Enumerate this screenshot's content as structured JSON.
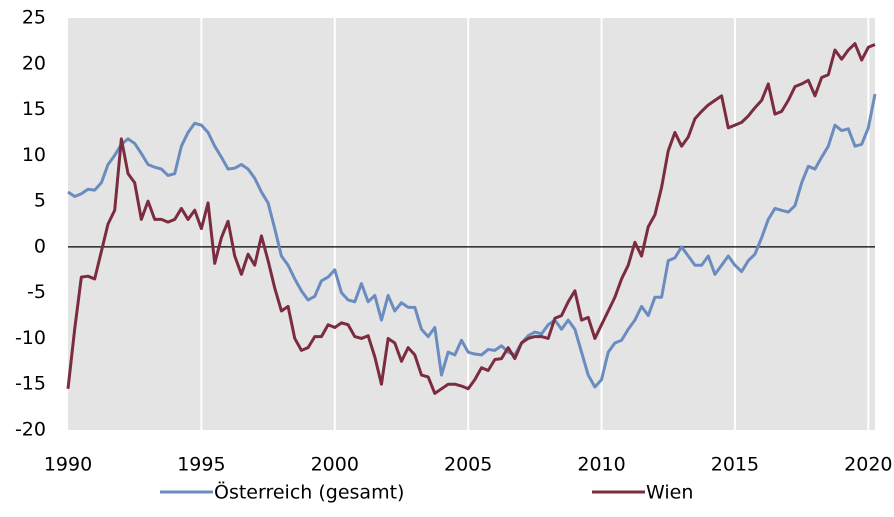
{
  "chart_data": {
    "type": "line",
    "x": [
      1990,
      1990.25,
      1990.5,
      1990.75,
      1991,
      1991.25,
      1991.5,
      1991.75,
      1992,
      1992.25,
      1992.5,
      1992.75,
      1993,
      1993.25,
      1993.5,
      1993.75,
      1994,
      1994.25,
      1994.5,
      1994.75,
      1995,
      1995.25,
      1995.5,
      1995.75,
      1996,
      1996.25,
      1996.5,
      1996.75,
      1997,
      1997.25,
      1997.5,
      1997.75,
      1998,
      1998.25,
      1998.5,
      1998.75,
      1999,
      1999.25,
      1999.5,
      1999.75,
      2000,
      2000.25,
      2000.5,
      2000.75,
      2001,
      2001.25,
      2001.5,
      2001.75,
      2002,
      2002.25,
      2002.5,
      2002.75,
      2003,
      2003.25,
      2003.5,
      2003.75,
      2004,
      2004.25,
      2004.5,
      2004.75,
      2005,
      2005.25,
      2005.5,
      2005.75,
      2006,
      2006.25,
      2006.5,
      2006.75,
      2007,
      2007.25,
      2007.5,
      2007.75,
      2008,
      2008.25,
      2008.5,
      2008.75,
      2009,
      2009.25,
      2009.5,
      2009.75,
      2010,
      2010.25,
      2010.5,
      2010.75,
      2011,
      2011.25,
      2011.5,
      2011.75,
      2012,
      2012.25,
      2012.5,
      2012.75,
      2013,
      2013.25,
      2013.5,
      2013.75,
      2014,
      2014.25,
      2014.5,
      2014.75,
      2015,
      2015.25,
      2015.5,
      2015.75,
      2016,
      2016.25,
      2016.5,
      2016.75,
      2017,
      2017.25,
      2017.5,
      2017.75,
      2018,
      2018.25,
      2018.5,
      2018.75,
      2019,
      2019.25,
      2019.5,
      2019.75,
      2020,
      2020.25
    ],
    "series": [
      {
        "name": "Österreich (gesamt)",
        "color": "#6a8cbf",
        "values": [
          6,
          5.5,
          5.8,
          6.3,
          6.2,
          7,
          9,
          10,
          11.2,
          11.8,
          11.3,
          10.2,
          9,
          8.7,
          8.5,
          7.8,
          8,
          11,
          12.5,
          13.5,
          13.3,
          12.5,
          11,
          9.8,
          8.5,
          8.6,
          9,
          8.5,
          7.5,
          6,
          4.8,
          2,
          -1,
          -2,
          -3.5,
          -4.8,
          -5.8,
          -5.4,
          -3.7,
          -3.3,
          -2.5,
          -5,
          -5.8,
          -6,
          -4,
          -6,
          -5.3,
          -8,
          -5.3,
          -7,
          -6.1,
          -6.6,
          -6.6,
          -9,
          -9.8,
          -8.8,
          -14,
          -11.5,
          -11.8,
          -10.2,
          -11.5,
          -11.7,
          -11.8,
          -11.2,
          -11.3,
          -10.8,
          -11.5,
          -11.8,
          -10.5,
          -9.7,
          -9.3,
          -9.5,
          -8.5,
          -8,
          -9,
          -8,
          -9,
          -11.5,
          -14,
          -15.3,
          -14.5,
          -11.5,
          -10.5,
          -10.2,
          -9,
          -8,
          -6.5,
          -7.5,
          -5.5,
          -5.5,
          -1.5,
          -1.2,
          0,
          -1,
          -2,
          -2,
          -1,
          -3,
          -2,
          -1,
          -2,
          -2.7,
          -1.5,
          -0.8,
          1,
          3,
          4.2,
          4,
          3.8,
          4.5,
          7,
          8.8,
          8.5,
          9.8,
          11,
          13.3,
          12.7,
          12.9,
          11,
          11.2,
          13,
          16.7
        ]
      },
      {
        "name": "Wien",
        "color": "#7b2c3e",
        "values": [
          -15.5,
          -9,
          -3.3,
          -3.2,
          -3.5,
          -0.5,
          2.5,
          4,
          11.8,
          8,
          7,
          3,
          5,
          3,
          3,
          2.7,
          3,
          4.2,
          3,
          4,
          2,
          4.8,
          -1.8,
          1,
          2.8,
          -1,
          -3,
          -0.8,
          -2,
          1.2,
          -1.5,
          -4.5,
          -7,
          -6.5,
          -10,
          -11.3,
          -11,
          -9.8,
          -9.8,
          -8.5,
          -8.8,
          -8.3,
          -8.5,
          -9.8,
          -10,
          -9.7,
          -12,
          -15,
          -10,
          -10.5,
          -12.5,
          -11,
          -11.8,
          -14,
          -14.2,
          -16,
          -15.5,
          -15,
          -15,
          -15.2,
          -15.5,
          -14.5,
          -13.2,
          -13.5,
          -12.3,
          -12.2,
          -11,
          -12.2,
          -10.5,
          -10,
          -9.8,
          -9.8,
          -10,
          -7.8,
          -7.5,
          -6,
          -4.8,
          -8,
          -7.7,
          -10,
          -8.5,
          -7,
          -5.5,
          -3.5,
          -2,
          0.5,
          -1,
          2.2,
          3.5,
          6.5,
          10.5,
          12.5,
          11,
          12,
          14,
          14.8,
          15.5,
          16,
          16.5,
          13,
          13.3,
          13.6,
          14.3,
          15.2,
          16,
          17.8,
          14.5,
          14.8,
          16,
          17.5,
          17.8,
          18.2,
          16.5,
          18.5,
          18.8,
          21.5,
          20.5,
          21.5,
          22.2,
          20.4,
          21.8,
          22.1
        ]
      }
    ],
    "xlim": [
      1990,
      2020.25
    ],
    "xticks": [
      1990,
      1995,
      2000,
      2005,
      2010,
      2015,
      2020
    ],
    "ylim": [
      -20,
      25
    ],
    "yticks": [
      -20,
      -15,
      -10,
      -5,
      0,
      5,
      10,
      15,
      20,
      25
    ],
    "grid": true
  }
}
